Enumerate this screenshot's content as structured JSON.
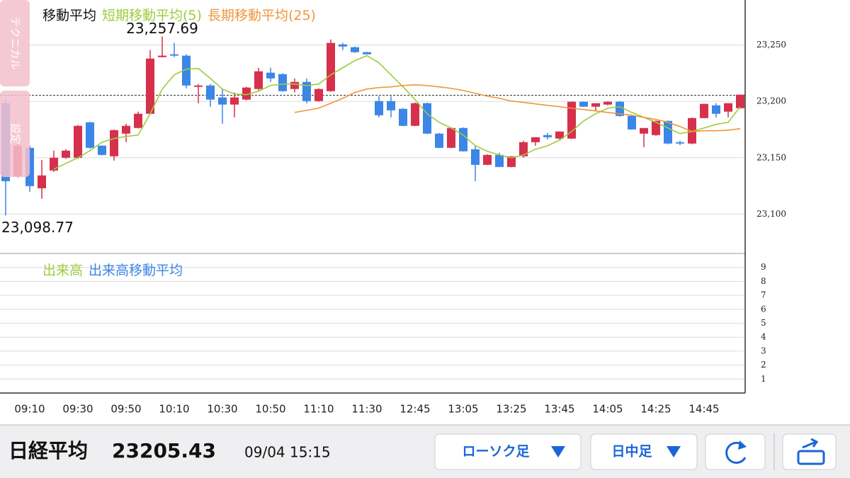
{
  "side_tabs": [
    "テクニカル",
    "設定"
  ],
  "chart_data": {
    "type": "candlestick",
    "legend_title": "移動平均",
    "categories": [
      null,
      null,
      "09:10",
      null,
      null,
      null,
      "09:30",
      null,
      null,
      null,
      "09:50",
      null,
      null,
      null,
      "10:10",
      null,
      null,
      null,
      "10:30",
      null,
      null,
      null,
      "10:50",
      null,
      null,
      null,
      "11:10",
      null,
      null,
      null,
      "11:30",
      null,
      null,
      null,
      "12:45",
      null,
      null,
      null,
      "13:05",
      null,
      null,
      null,
      "13:25",
      null,
      null,
      null,
      "13:45",
      null,
      null,
      null,
      "14:05",
      null,
      null,
      null,
      "14:25",
      null,
      null,
      null,
      "14:45",
      null,
      null,
      null
    ],
    "open": [
      23198.4,
      23133.6,
      23158.8,
      23122.9,
      23138.7,
      23150.0,
      23150.0,
      23181.4,
      23160.7,
      23151.3,
      23171.4,
      23176.4,
      23189.0,
      23239.3,
      23241.8,
      23240.6,
      23212.9,
      23214.1,
      23203.5,
      23197.2,
      23201.6,
      23211.0,
      23225.5,
      23224.2,
      23211.0,
      23217.3,
      23200.3,
      23209.1,
      23250.6,
      23248.1,
      23243.7,
      23200.3,
      23200.3,
      23193.4,
      23178.3,
      23198.4,
      23171.4,
      23158.8,
      23176.4,
      23157.5,
      23143.7,
      23152.5,
      23141.8,
      23151.3,
      23163.8,
      23170.1,
      23167.0,
      23167.0,
      23199.7,
      23195.3,
      23197.2,
      23199.7,
      23187.1,
      23171.4,
      23170.1,
      23182.7,
      23163.8,
      23162.6,
      23185.2,
      23196.5,
      23190.9,
      23194.0
    ],
    "high": [
      23201.6,
      23167.0,
      23160.7,
      23148.1,
      23156.3,
      23157.5,
      23179.0,
      23182.0,
      23161.0,
      23175.1,
      23180.2,
      23190.9,
      23245.6,
      23257.69,
      23251.9,
      23241.8,
      23215.4,
      23215.4,
      23211.0,
      23207.9,
      23213.0,
      23229.9,
      23229.9,
      23225.0,
      23220.4,
      23220.4,
      23211.6,
      23255.0,
      23251.9,
      23248.7,
      23244.0,
      23204.7,
      23204.7,
      23194.0,
      23199.0,
      23199.0,
      23172.0,
      23177.0,
      23177.0,
      23160.7,
      23153.0,
      23154.4,
      23151.5,
      23165.1,
      23168.2,
      23172.0,
      23173.3,
      23200.0,
      23200.0,
      23198.4,
      23200.0,
      23200.3,
      23187.5,
      23176.4,
      23183.0,
      23183.0,
      23165.1,
      23185.8,
      23198.0,
      23198.4,
      23198.4,
      23206.0
    ],
    "low": [
      23098.77,
      23132.4,
      23119.8,
      23113.5,
      23137.4,
      23149.0,
      23149.0,
      23158.0,
      23152.0,
      23147.5,
      23163.8,
      23176.0,
      23188.5,
      23239.0,
      23239.3,
      23211.6,
      23198.4,
      23195.3,
      23180.2,
      23185.8,
      23201.0,
      23209.7,
      23217.3,
      23208.5,
      23207.9,
      23198.4,
      23199.7,
      23208.5,
      23245.6,
      23243.0,
      23241.5,
      23185.8,
      23185.8,
      23178.0,
      23178.0,
      23171.0,
      23158.5,
      23158.5,
      23155.5,
      23129.2,
      23143.5,
      23141.8,
      23141.5,
      23150.0,
      23160.7,
      23166.3,
      23166.3,
      23166.5,
      23195.0,
      23191.5,
      23196.5,
      23186.5,
      23174.8,
      23159.4,
      23169.5,
      23162.0,
      23161.3,
      23162.0,
      23185.0,
      23185.8,
      23185.8,
      23193.5
    ],
    "close": [
      23129.2,
      23160.7,
      23124.8,
      23134.3,
      23150.0,
      23156.3,
      23178.3,
      23158.8,
      23152.5,
      23174.5,
      23178.3,
      23189.0,
      23238.0,
      23240.6,
      23240.6,
      23214.1,
      23214.1,
      23201.6,
      23197.2,
      23203.5,
      23212.3,
      23226.7,
      23220.4,
      23209.1,
      23217.3,
      23200.3,
      23211.0,
      23251.9,
      23248.7,
      23243.7,
      23241.8,
      23187.7,
      23192.1,
      23178.3,
      23198.4,
      23171.4,
      23158.8,
      23176.4,
      23155.7,
      23143.7,
      23152.5,
      23141.8,
      23151.3,
      23163.8,
      23168.2,
      23168.2,
      23173.3,
      23199.7,
      23195.3,
      23198.4,
      23199.7,
      23187.1,
      23175.1,
      23176.4,
      23182.7,
      23162.6,
      23162.6,
      23185.2,
      23197.8,
      23189.0,
      23198.4,
      23206.0
    ],
    "up_color": "#d6304c",
    "down_color": "#3b86e6",
    "series": [
      {
        "name": "短期移動平均(5)",
        "color": "#9ccc3c",
        "values": [
          null,
          null,
          null,
          null,
          23139.9,
          23145.0,
          23150.0,
          23156.3,
          23163.8,
          23167.0,
          23168.9,
          23170.1,
          23189.0,
          23211.0,
          23223.6,
          23228.6,
          23229.2,
          23220.4,
          23211.0,
          23206.6,
          23206.0,
          23209.1,
          23214.1,
          23215.4,
          23215.4,
          23214.1,
          23215.4,
          23223.6,
          23229.9,
          23236.2,
          23240.6,
          23234.3,
          23223.6,
          23212.9,
          23201.6,
          23189.0,
          23181.4,
          23176.4,
          23170.1,
          23160.7,
          23155.7,
          23152.5,
          23150.0,
          23152.5,
          23157.5,
          23160.7,
          23165.7,
          23173.3,
          23182.7,
          23189.0,
          23194.0,
          23195.3,
          23190.2,
          23185.8,
          23181.4,
          23176.4,
          23171.4,
          23173.3,
          23176.4,
          23179.6,
          23181.4,
          23195.3
        ]
      },
      {
        "name": "長期移動平均(25)",
        "color": "#f0953a",
        "values": [
          null,
          null,
          null,
          null,
          null,
          null,
          null,
          null,
          null,
          null,
          null,
          null,
          null,
          null,
          null,
          null,
          null,
          null,
          null,
          null,
          null,
          null,
          null,
          null,
          23190.2,
          23192.1,
          23194.0,
          23198.4,
          23202.8,
          23207.9,
          23211.0,
          23212.3,
          23212.9,
          23214.1,
          23214.8,
          23214.1,
          23212.9,
          23211.6,
          23209.7,
          23207.2,
          23204.7,
          23202.8,
          23200.3,
          23199.1,
          23197.8,
          23196.5,
          23195.3,
          23194.0,
          23192.8,
          23191.5,
          23190.2,
          23189.0,
          23187.7,
          23185.8,
          23184.0,
          23181.4,
          23177.7,
          23173.3,
          23173.9,
          23173.9,
          23174.5,
          23175.8
        ]
      }
    ],
    "high_label": {
      "value": 23257.69,
      "label": "23,257.69"
    },
    "low_label": {
      "value": 23098.77,
      "label": "23,098.77"
    },
    "current_price": 23205.43,
    "ylim": [
      23065,
      23290
    ],
    "yticks": [
      {
        "value": 23100,
        "label": "23,100"
      },
      {
        "value": 23150,
        "label": "23,150"
      },
      {
        "value": 23200,
        "label": "23,200"
      },
      {
        "value": 23250,
        "label": "23,250"
      }
    ],
    "grid": true,
    "volume_panel": {
      "legend_title": "出来高",
      "legend_title_color": "#9ccc3c",
      "series_name": "出来高移動平均",
      "series_color": "#3b86e6",
      "ylim": [
        0,
        10
      ],
      "yticks": [
        1,
        2,
        3,
        4,
        5,
        6,
        7,
        8,
        9
      ]
    }
  },
  "footer": {
    "index_name": "日経平均",
    "price": 23205.43,
    "datetime": "09/04 15:15",
    "buttons": [
      "ローソク足",
      "日中足"
    ]
  }
}
